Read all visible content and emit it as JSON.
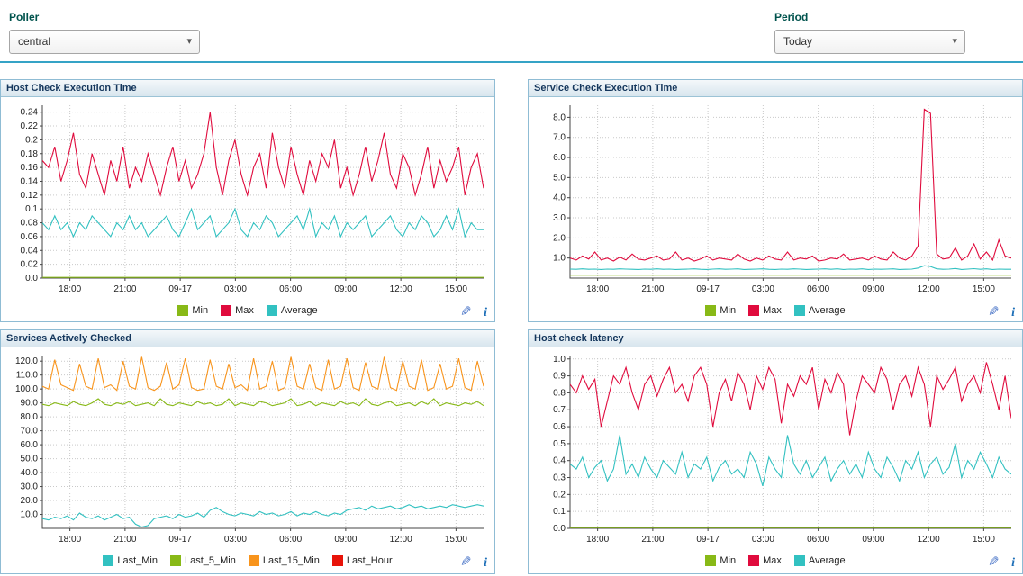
{
  "controls": {
    "poller": {
      "label": "Poller",
      "value": "central"
    },
    "period": {
      "label": "Period",
      "value": "Today"
    }
  },
  "chart_data": [
    {
      "type": "line",
      "title": "Host Check Execution Time",
      "legend_position": "bottom",
      "ylim": [
        0,
        0.25
      ],
      "y_ticks": [
        {
          "v": 0,
          "label": "0.0"
        },
        {
          "v": 0.02,
          "label": "0.02"
        },
        {
          "v": 0.04,
          "label": "0.04"
        },
        {
          "v": 0.06,
          "label": "0.06"
        },
        {
          "v": 0.08,
          "label": "0.08"
        },
        {
          "v": 0.1,
          "label": "0.1"
        },
        {
          "v": 0.12,
          "label": "0.12"
        },
        {
          "v": 0.14,
          "label": "0.14"
        },
        {
          "v": 0.16,
          "label": "0.16"
        },
        {
          "v": 0.18,
          "label": "0.18"
        },
        {
          "v": 0.2,
          "label": "0.2"
        },
        {
          "v": 0.22,
          "label": "0.22"
        },
        {
          "v": 0.24,
          "label": "0.24"
        }
      ],
      "x_ticks": [
        {
          "label": "18:00",
          "pos": 0.0625
        },
        {
          "label": "21:00",
          "pos": 0.1875
        },
        {
          "label": "09-17",
          "pos": 0.3125
        },
        {
          "label": "03:00",
          "pos": 0.4375
        },
        {
          "label": "06:00",
          "pos": 0.5625
        },
        {
          "label": "09:00",
          "pos": 0.6875
        },
        {
          "label": "12:00",
          "pos": 0.8125
        },
        {
          "label": "15:00",
          "pos": 0.9375
        }
      ],
      "series": [
        {
          "name": "Min",
          "color": "#88B917",
          "const": 0.001,
          "n": 72
        },
        {
          "name": "Max",
          "color": "#E00B3D",
          "values": [
            0.17,
            0.16,
            0.19,
            0.14,
            0.17,
            0.21,
            0.15,
            0.13,
            0.18,
            0.15,
            0.12,
            0.17,
            0.14,
            0.19,
            0.13,
            0.16,
            0.14,
            0.18,
            0.15,
            0.12,
            0.16,
            0.19,
            0.14,
            0.17,
            0.13,
            0.15,
            0.18,
            0.24,
            0.16,
            0.12,
            0.17,
            0.2,
            0.15,
            0.12,
            0.16,
            0.18,
            0.13,
            0.21,
            0.16,
            0.13,
            0.19,
            0.15,
            0.12,
            0.17,
            0.14,
            0.18,
            0.16,
            0.2,
            0.13,
            0.16,
            0.12,
            0.15,
            0.19,
            0.14,
            0.17,
            0.21,
            0.15,
            0.13,
            0.18,
            0.16,
            0.12,
            0.15,
            0.19,
            0.13,
            0.17,
            0.14,
            0.16,
            0.19,
            0.12,
            0.16,
            0.18,
            0.13
          ]
        },
        {
          "name": "Average",
          "color": "#32C1C1",
          "values": [
            0.08,
            0.07,
            0.09,
            0.07,
            0.08,
            0.06,
            0.08,
            0.07,
            0.09,
            0.08,
            0.07,
            0.06,
            0.08,
            0.07,
            0.09,
            0.07,
            0.08,
            0.06,
            0.07,
            0.08,
            0.09,
            0.07,
            0.06,
            0.08,
            0.1,
            0.07,
            0.08,
            0.09,
            0.06,
            0.07,
            0.08,
            0.1,
            0.07,
            0.06,
            0.08,
            0.07,
            0.09,
            0.08,
            0.06,
            0.07,
            0.08,
            0.09,
            0.07,
            0.1,
            0.06,
            0.08,
            0.07,
            0.09,
            0.06,
            0.08,
            0.07,
            0.08,
            0.09,
            0.06,
            0.07,
            0.08,
            0.09,
            0.07,
            0.06,
            0.08,
            0.07,
            0.09,
            0.08,
            0.06,
            0.07,
            0.09,
            0.07,
            0.1,
            0.06,
            0.08,
            0.07,
            0.07
          ]
        }
      ]
    },
    {
      "type": "line",
      "title": "Service Check Execution Time",
      "legend_position": "bottom",
      "ylim": [
        0,
        8.6
      ],
      "y_ticks": [
        {
          "v": 1,
          "label": "1.0"
        },
        {
          "v": 2,
          "label": "2.0"
        },
        {
          "v": 3,
          "label": "3.0"
        },
        {
          "v": 4,
          "label": "4.0"
        },
        {
          "v": 5,
          "label": "5.0"
        },
        {
          "v": 6,
          "label": "6.0"
        },
        {
          "v": 7,
          "label": "7.0"
        },
        {
          "v": 8,
          "label": "8.0"
        }
      ],
      "x_ticks": [
        {
          "label": "18:00",
          "pos": 0.0625
        },
        {
          "label": "21:00",
          "pos": 0.1875
        },
        {
          "label": "09-17",
          "pos": 0.3125
        },
        {
          "label": "03:00",
          "pos": 0.4375
        },
        {
          "label": "06:00",
          "pos": 0.5625
        },
        {
          "label": "09:00",
          "pos": 0.6875
        },
        {
          "label": "12:00",
          "pos": 0.8125
        },
        {
          "label": "15:00",
          "pos": 0.9375
        }
      ],
      "series": [
        {
          "name": "Min",
          "color": "#88B917",
          "const": 0.15,
          "n": 72
        },
        {
          "name": "Max",
          "color": "#E00B3D",
          "values": [
            1.0,
            0.9,
            1.1,
            0.95,
            1.3,
            0.9,
            1.0,
            0.85,
            1.05,
            0.9,
            1.2,
            0.95,
            0.9,
            1.0,
            1.1,
            0.9,
            0.95,
            1.3,
            0.9,
            1.0,
            0.85,
            0.95,
            1.1,
            0.9,
            1.0,
            0.95,
            0.9,
            1.2,
            0.95,
            0.85,
            1.0,
            0.9,
            1.1,
            0.95,
            0.9,
            1.3,
            0.9,
            1.0,
            0.95,
            1.1,
            0.85,
            0.9,
            1.0,
            0.95,
            1.2,
            0.9,
            0.95,
            1.0,
            0.9,
            1.1,
            0.95,
            0.9,
            1.3,
            1.0,
            0.9,
            1.1,
            1.6,
            8.4,
            8.2,
            1.2,
            0.95,
            1.0,
            1.5,
            0.9,
            1.1,
            1.7,
            0.95,
            1.3,
            0.9,
            1.9,
            1.1,
            1.0
          ]
        },
        {
          "name": "Average",
          "color": "#32C1C1",
          "values": [
            0.45,
            0.44,
            0.46,
            0.44,
            0.45,
            0.43,
            0.45,
            0.44,
            0.46,
            0.45,
            0.44,
            0.43,
            0.45,
            0.44,
            0.46,
            0.44,
            0.45,
            0.43,
            0.44,
            0.45,
            0.46,
            0.44,
            0.43,
            0.45,
            0.46,
            0.44,
            0.45,
            0.46,
            0.43,
            0.44,
            0.45,
            0.46,
            0.44,
            0.43,
            0.45,
            0.44,
            0.46,
            0.45,
            0.43,
            0.44,
            0.45,
            0.46,
            0.44,
            0.46,
            0.43,
            0.45,
            0.44,
            0.46,
            0.43,
            0.45,
            0.44,
            0.45,
            0.46,
            0.43,
            0.44,
            0.45,
            0.5,
            0.62,
            0.58,
            0.46,
            0.44,
            0.45,
            0.48,
            0.43,
            0.45,
            0.47,
            0.44,
            0.46,
            0.43,
            0.45,
            0.44,
            0.44
          ]
        }
      ]
    },
    {
      "type": "line",
      "title": "Services Actively Checked",
      "legend_position": "bottom",
      "ylim": [
        0,
        124
      ],
      "y_ticks": [
        {
          "v": 10,
          "label": "10.0"
        },
        {
          "v": 20,
          "label": "20.0"
        },
        {
          "v": 30,
          "label": "30.0"
        },
        {
          "v": 40,
          "label": "40.0"
        },
        {
          "v": 50,
          "label": "50.0"
        },
        {
          "v": 60,
          "label": "60.0"
        },
        {
          "v": 70,
          "label": "70.0"
        },
        {
          "v": 80,
          "label": "80.0"
        },
        {
          "v": 90,
          "label": "90.0"
        },
        {
          "v": 100,
          "label": "100.0"
        },
        {
          "v": 110,
          "label": "110.0"
        },
        {
          "v": 120,
          "label": "120.0"
        }
      ],
      "x_ticks": [
        {
          "label": "18:00",
          "pos": 0.0625
        },
        {
          "label": "21:00",
          "pos": 0.1875
        },
        {
          "label": "09-17",
          "pos": 0.3125
        },
        {
          "label": "03:00",
          "pos": 0.4375
        },
        {
          "label": "06:00",
          "pos": 0.5625
        },
        {
          "label": "09:00",
          "pos": 0.6875
        },
        {
          "label": "12:00",
          "pos": 0.8125
        },
        {
          "label": "15:00",
          "pos": 0.9375
        }
      ],
      "series": [
        {
          "name": "Last_Min",
          "color": "#32C1C1",
          "values": [
            7,
            6,
            8,
            7,
            9,
            6,
            11,
            8,
            7,
            9,
            6,
            8,
            10,
            7,
            8,
            3,
            1,
            2,
            7,
            8,
            9,
            7,
            10,
            8,
            9,
            11,
            8,
            13,
            15,
            12,
            10,
            9,
            11,
            10,
            9,
            12,
            10,
            11,
            9,
            10,
            12,
            9,
            11,
            10,
            12,
            10,
            9,
            11,
            10,
            13,
            14,
            15,
            13,
            16,
            14,
            15,
            16,
            14,
            15,
            17,
            15,
            16,
            14,
            15,
            16,
            15,
            17,
            16,
            15,
            16,
            17,
            16
          ]
        },
        {
          "name": "Last_5_Min",
          "color": "#88B917",
          "values": [
            89,
            88,
            90,
            89,
            88,
            91,
            89,
            88,
            90,
            93,
            89,
            88,
            90,
            89,
            91,
            88,
            89,
            90,
            88,
            93,
            89,
            88,
            90,
            89,
            88,
            91,
            89,
            90,
            88,
            89,
            93,
            88,
            90,
            89,
            88,
            91,
            90,
            88,
            89,
            90,
            93,
            88,
            89,
            91,
            88,
            90,
            89,
            88,
            91,
            89,
            90,
            88,
            93,
            89,
            88,
            90,
            91,
            88,
            89,
            90,
            88,
            91,
            89,
            93,
            88,
            90,
            89,
            88,
            90,
            89,
            91,
            88
          ]
        },
        {
          "name": "Last_15_Min",
          "color": "#F8941C",
          "values": [
            102,
            100,
            121,
            103,
            101,
            99,
            118,
            102,
            100,
            122,
            101,
            103,
            99,
            120,
            102,
            100,
            123,
            101,
            99,
            102,
            119,
            100,
            103,
            122,
            101,
            99,
            100,
            121,
            102,
            100,
            118,
            101,
            103,
            99,
            122,
            100,
            102,
            120,
            99,
            101,
            123,
            102,
            100,
            118,
            101,
            99,
            121,
            100,
            102,
            122,
            101,
            99,
            119,
            102,
            100,
            123,
            101,
            99,
            120,
            102,
            100,
            121,
            99,
            101,
            118,
            100,
            102,
            122,
            101,
            99,
            120,
            102
          ]
        },
        {
          "name": "Last_Hour",
          "color": "#E81309",
          "const": 130,
          "n": 72
        }
      ]
    },
    {
      "type": "line",
      "title": "Host check latency",
      "legend_position": "bottom",
      "ylim": [
        0,
        1.02
      ],
      "y_ticks": [
        {
          "v": 0,
          "label": "0.0"
        },
        {
          "v": 0.1,
          "label": "0.1"
        },
        {
          "v": 0.2,
          "label": "0.2"
        },
        {
          "v": 0.3,
          "label": "0.3"
        },
        {
          "v": 0.4,
          "label": "0.4"
        },
        {
          "v": 0.5,
          "label": "0.5"
        },
        {
          "v": 0.6,
          "label": "0.6"
        },
        {
          "v": 0.7,
          "label": "0.7"
        },
        {
          "v": 0.8,
          "label": "0.8"
        },
        {
          "v": 0.9,
          "label": "0.9"
        },
        {
          "v": 1.0,
          "label": "1.0"
        }
      ],
      "x_ticks": [
        {
          "label": "18:00",
          "pos": 0.0625
        },
        {
          "label": "21:00",
          "pos": 0.1875
        },
        {
          "label": "09-17",
          "pos": 0.3125
        },
        {
          "label": "03:00",
          "pos": 0.4375
        },
        {
          "label": "06:00",
          "pos": 0.5625
        },
        {
          "label": "09:00",
          "pos": 0.6875
        },
        {
          "label": "12:00",
          "pos": 0.8125
        },
        {
          "label": "15:00",
          "pos": 0.9375
        }
      ],
      "series": [
        {
          "name": "Min",
          "color": "#88B917",
          "const": 0.004,
          "n": 72
        },
        {
          "name": "Max",
          "color": "#E00B3D",
          "values": [
            0.85,
            0.8,
            0.9,
            0.82,
            0.88,
            0.6,
            0.75,
            0.9,
            0.85,
            0.95,
            0.8,
            0.7,
            0.85,
            0.9,
            0.78,
            0.88,
            0.95,
            0.8,
            0.85,
            0.75,
            0.9,
            0.95,
            0.85,
            0.6,
            0.8,
            0.88,
            0.75,
            0.92,
            0.85,
            0.7,
            0.9,
            0.82,
            0.95,
            0.88,
            0.62,
            0.85,
            0.78,
            0.9,
            0.85,
            0.95,
            0.7,
            0.88,
            0.8,
            0.92,
            0.85,
            0.55,
            0.75,
            0.9,
            0.85,
            0.8,
            0.95,
            0.88,
            0.7,
            0.85,
            0.9,
            0.78,
            0.95,
            0.85,
            0.6,
            0.9,
            0.82,
            0.88,
            0.95,
            0.75,
            0.85,
            0.9,
            0.8,
            0.98,
            0.85,
            0.7,
            0.9,
            0.65
          ]
        },
        {
          "name": "Average",
          "color": "#32C1C1",
          "values": [
            0.38,
            0.35,
            0.42,
            0.3,
            0.36,
            0.4,
            0.28,
            0.35,
            0.55,
            0.32,
            0.38,
            0.3,
            0.42,
            0.35,
            0.3,
            0.4,
            0.36,
            0.32,
            0.45,
            0.3,
            0.38,
            0.35,
            0.42,
            0.28,
            0.36,
            0.4,
            0.32,
            0.35,
            0.3,
            0.45,
            0.38,
            0.25,
            0.42,
            0.35,
            0.3,
            0.55,
            0.38,
            0.32,
            0.4,
            0.3,
            0.36,
            0.42,
            0.28,
            0.35,
            0.4,
            0.32,
            0.38,
            0.3,
            0.45,
            0.35,
            0.3,
            0.42,
            0.36,
            0.28,
            0.4,
            0.35,
            0.45,
            0.3,
            0.38,
            0.42,
            0.32,
            0.36,
            0.5,
            0.3,
            0.4,
            0.35,
            0.45,
            0.38,
            0.3,
            0.42,
            0.35,
            0.32
          ]
        }
      ]
    }
  ]
}
